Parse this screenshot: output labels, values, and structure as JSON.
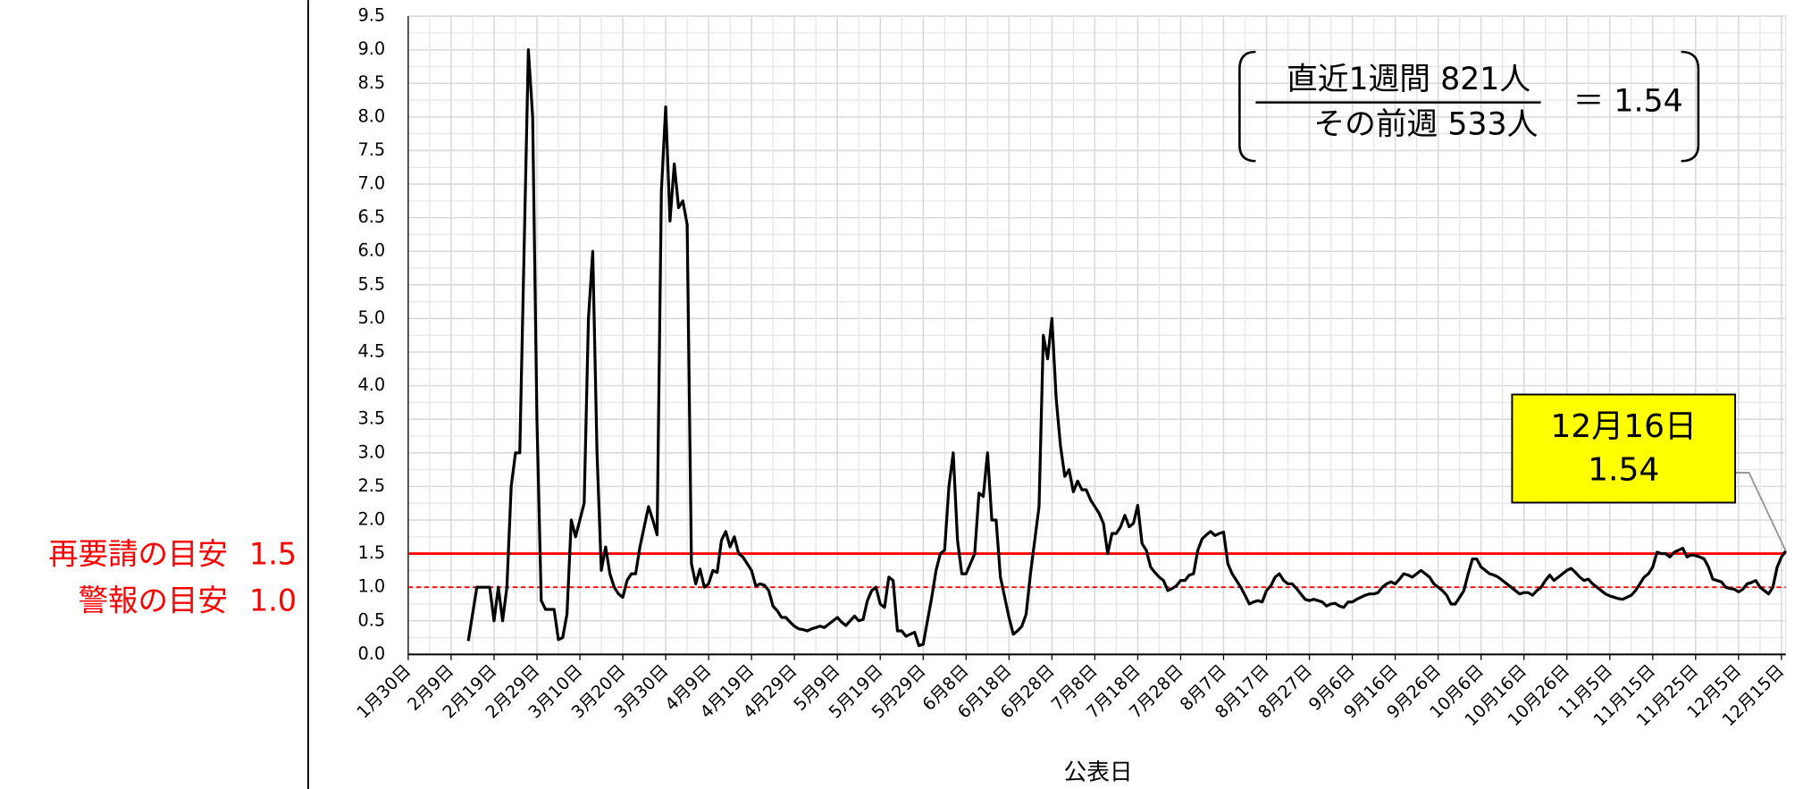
{
  "chart_data": {
    "type": "line",
    "x_label": "公表日",
    "categories": [
      "1月30日",
      null,
      null,
      null,
      null,
      null,
      null,
      null,
      null,
      null,
      "2月9日",
      null,
      null,
      null,
      null,
      null,
      null,
      null,
      null,
      null,
      "2月19日",
      null,
      null,
      null,
      null,
      null,
      null,
      null,
      null,
      null,
      "2月29日",
      null,
      null,
      null,
      null,
      null,
      null,
      null,
      null,
      null,
      "3月10日",
      null,
      null,
      null,
      null,
      null,
      null,
      null,
      null,
      null,
      "3月20日",
      null,
      null,
      null,
      null,
      null,
      null,
      null,
      null,
      null,
      "3月30日",
      null,
      null,
      null,
      null,
      null,
      null,
      null,
      null,
      null,
      "4月9日",
      null,
      null,
      null,
      null,
      null,
      null,
      null,
      null,
      null,
      "4月19日",
      null,
      null,
      null,
      null,
      null,
      null,
      null,
      null,
      null,
      "4月29日",
      null,
      null,
      null,
      null,
      null,
      null,
      null,
      null,
      null,
      "5月9日",
      null,
      null,
      null,
      null,
      null,
      null,
      null,
      null,
      null,
      "5月19日",
      null,
      null,
      null,
      null,
      null,
      null,
      null,
      null,
      null,
      "5月29日",
      null,
      null,
      null,
      null,
      null,
      null,
      null,
      null,
      null,
      "6月8日",
      null,
      null,
      null,
      null,
      null,
      null,
      null,
      null,
      null,
      "6月18日",
      null,
      null,
      null,
      null,
      null,
      null,
      null,
      null,
      null,
      "6月28日",
      null,
      null,
      null,
      null,
      null,
      null,
      null,
      null,
      null,
      "7月8日",
      null,
      null,
      null,
      null,
      null,
      null,
      null,
      null,
      null,
      "7月18日",
      null,
      null,
      null,
      null,
      null,
      null,
      null,
      null,
      null,
      "7月28日",
      null,
      null,
      null,
      null,
      null,
      null,
      null,
      null,
      null,
      "8月7日",
      null,
      null,
      null,
      null,
      null,
      null,
      null,
      null,
      null,
      "8月17日",
      null,
      null,
      null,
      null,
      null,
      null,
      null,
      null,
      null,
      "8月27日",
      null,
      null,
      null,
      null,
      null,
      null,
      null,
      null,
      null,
      "9月6日",
      null,
      null,
      null,
      null,
      null,
      null,
      null,
      null,
      null,
      "9月16日",
      null,
      null,
      null,
      null,
      null,
      null,
      null,
      null,
      null,
      "9月26日",
      null,
      null,
      null,
      null,
      null,
      null,
      null,
      null,
      null,
      "10月6日",
      null,
      null,
      null,
      null,
      null,
      null,
      null,
      null,
      null,
      "10月16日",
      null,
      null,
      null,
      null,
      null,
      null,
      null,
      null,
      null,
      "10月26日",
      null,
      null,
      null,
      null,
      null,
      null,
      null,
      null,
      null,
      "11月5日",
      null,
      null,
      null,
      null,
      null,
      null,
      null,
      null,
      null,
      "11月15日",
      null,
      null,
      null,
      null,
      null,
      null,
      null,
      null,
      null,
      "11月25日",
      null,
      null,
      null,
      null,
      null,
      null,
      null,
      null,
      null,
      "12月5日",
      null,
      null,
      null,
      null,
      null,
      null,
      null,
      null,
      null,
      "12月15日",
      null
    ],
    "values": [
      null,
      null,
      null,
      null,
      null,
      null,
      null,
      null,
      null,
      null,
      null,
      null,
      null,
      null,
      0.2,
      0.6,
      1.0,
      1.0,
      1.0,
      1.0,
      0.5,
      1.0,
      0.5,
      1.0,
      2.5,
      3.0,
      3.0,
      6.0,
      9.0,
      8.0,
      3.5,
      0.8,
      0.67,
      0.67,
      0.67,
      0.22,
      0.25,
      0.6,
      2.0,
      1.75,
      2.0,
      2.25,
      5.0,
      6.0,
      3.0,
      1.25,
      1.6,
      1.2,
      1.0,
      0.9,
      0.85,
      1.1,
      1.2,
      1.2,
      1.6,
      1.9,
      2.2,
      2.0,
      1.78,
      6.9,
      8.15,
      6.45,
      7.3,
      6.65,
      6.75,
      6.4,
      1.35,
      1.05,
      1.27,
      1.0,
      1.05,
      1.25,
      1.22,
      1.7,
      1.83,
      1.6,
      1.75,
      1.5,
      1.45,
      1.35,
      1.25,
      1.02,
      1.05,
      1.03,
      0.95,
      0.72,
      0.65,
      0.55,
      0.55,
      0.48,
      0.42,
      0.38,
      0.37,
      0.35,
      0.38,
      0.4,
      0.42,
      0.4,
      0.45,
      0.5,
      0.55,
      0.48,
      0.43,
      0.5,
      0.57,
      0.5,
      0.52,
      0.8,
      0.95,
      1.0,
      0.75,
      0.7,
      1.15,
      1.1,
      0.35,
      0.35,
      0.27,
      0.3,
      0.33,
      0.13,
      0.15,
      0.5,
      0.85,
      1.25,
      1.5,
      1.55,
      2.5,
      3.0,
      1.7,
      1.2,
      1.2,
      1.35,
      1.5,
      2.4,
      2.35,
      3.0,
      2.0,
      2.0,
      1.15,
      0.85,
      0.55,
      0.3,
      0.35,
      0.42,
      0.6,
      1.2,
      1.7,
      2.2,
      4.75,
      4.4,
      5.0,
      3.8,
      3.1,
      2.65,
      2.75,
      2.42,
      2.58,
      2.45,
      2.45,
      2.3,
      2.2,
      2.1,
      1.95,
      1.5,
      1.8,
      1.8,
      1.9,
      2.07,
      1.9,
      1.95,
      2.22,
      1.65,
      1.55,
      1.3,
      1.22,
      1.15,
      1.1,
      0.95,
      0.98,
      1.02,
      1.1,
      1.1,
      1.18,
      1.2,
      1.55,
      1.72,
      1.78,
      1.83,
      1.77,
      1.8,
      1.82,
      1.35,
      1.2,
      1.1,
      1.0,
      0.88,
      0.75,
      0.78,
      0.8,
      0.78,
      0.95,
      1.02,
      1.15,
      1.2,
      1.1,
      1.05,
      1.05,
      0.98,
      0.9,
      0.82,
      0.8,
      0.82,
      0.8,
      0.78,
      0.72,
      0.75,
      0.76,
      0.72,
      0.7,
      0.78,
      0.78,
      0.82,
      0.85,
      0.88,
      0.9,
      0.9,
      0.92,
      1.0,
      1.05,
      1.08,
      1.05,
      1.12,
      1.2,
      1.18,
      1.15,
      1.2,
      1.25,
      1.2,
      1.15,
      1.05,
      1.0,
      0.95,
      0.88,
      0.75,
      0.75,
      0.85,
      0.95,
      1.2,
      1.42,
      1.42,
      1.3,
      1.25,
      1.2,
      1.18,
      1.15,
      1.1,
      1.05,
      1.0,
      0.95,
      0.9,
      0.92,
      0.92,
      0.88,
      0.95,
      1.0,
      1.1,
      1.18,
      1.1,
      1.15,
      1.2,
      1.25,
      1.28,
      1.22,
      1.15,
      1.1,
      1.12,
      1.05,
      1.0,
      0.95,
      0.9,
      0.87,
      0.85,
      0.83,
      0.82,
      0.85,
      0.88,
      0.95,
      1.05,
      1.15,
      1.2,
      1.3,
      1.52,
      1.5,
      1.5,
      1.45,
      1.52,
      1.55,
      1.58,
      1.45,
      1.48,
      1.47,
      1.45,
      1.42,
      1.3,
      1.12,
      1.1,
      1.08,
      1.0,
      0.98,
      0.97,
      0.93,
      0.97,
      1.05,
      1.07,
      1.1,
      1.0,
      0.95,
      0.9,
      1.0,
      1.3,
      1.45,
      1.54
    ],
    "color": "#000000",
    "ylim": [
      0,
      9.5
    ],
    "yticks": [
      {
        "value": 0,
        "label": "0.0"
      },
      0.5,
      {
        "value": 1,
        "label": "1.0"
      },
      1.5,
      {
        "value": 2,
        "label": "2.0"
      },
      2.5,
      {
        "value": 3,
        "label": "3.0"
      },
      3.5,
      {
        "value": 4,
        "label": "4.0"
      },
      4.5,
      {
        "value": 5,
        "label": "5.0"
      },
      5.5,
      {
        "value": 6,
        "label": "6.0"
      },
      6.5,
      {
        "value": 7,
        "label": "7.0"
      },
      7.5,
      {
        "value": 8,
        "label": "8.0"
      },
      8.5,
      {
        "value": 9,
        "label": "9.0"
      },
      9.5
    ],
    "grid": true,
    "reference_lines": [
      {
        "label": "再要請の目安",
        "value": 1.5,
        "color": "#ff0000",
        "style": "solid"
      },
      {
        "label": "警報の目安",
        "value": 1,
        "value_label": "1.0",
        "color": "#ff0000",
        "style": "dashed"
      }
    ],
    "formula": {
      "numerator": "直近1週間 821人",
      "denominator": "その前週 533人",
      "result": "＝ 1.54"
    },
    "callout": {
      "date": "12月16日",
      "value": 1.54,
      "fill": "#ffff00"
    }
  }
}
